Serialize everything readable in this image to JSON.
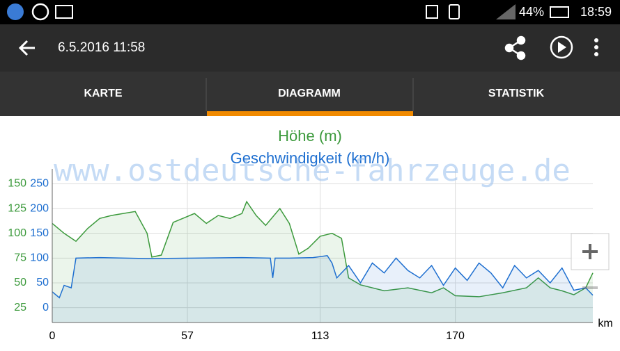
{
  "status_bar": {
    "battery": "44%",
    "time": "18:59"
  },
  "app_bar": {
    "title": "6.5.2016 11:58"
  },
  "tabs": [
    "KARTE",
    "DIAGRAMM",
    "STATISTIK"
  ],
  "chart_data": {
    "type": "line",
    "title": "Höhe (m)",
    "subtitle": "Geschwindigkeit (km/h)",
    "watermark": "www.ostdeutsche-fahrzeuge.de",
    "x_label": "km",
    "xlim": [
      0,
      228
    ],
    "xticks": [
      0,
      57,
      113,
      170
    ],
    "ylim": [
      10,
      165
    ],
    "yticks": [
      25,
      50,
      75,
      100,
      125,
      150
    ],
    "y2lim": [
      -30,
      280
    ],
    "y2ticks": [
      0,
      50,
      100,
      150,
      200,
      250
    ],
    "grid": true,
    "series": [
      {
        "name": "Höhe (m)",
        "color": "#3c9a3c",
        "axis": "y",
        "x": [
          0,
          5,
          10,
          15,
          20,
          25,
          30,
          35,
          40,
          42,
          46,
          51,
          55,
          60,
          65,
          70,
          75,
          80,
          82,
          86,
          90,
          96,
          100,
          104,
          108,
          113,
          118,
          122,
          125,
          130,
          140,
          150,
          160,
          165,
          170,
          180,
          190,
          200,
          205,
          210,
          215,
          220,
          225,
          228
        ],
        "values": [
          110,
          100,
          92,
          105,
          115,
          118,
          120,
          122,
          100,
          76,
          78,
          111,
          115,
          120,
          110,
          118,
          115,
          120,
          132,
          118,
          108,
          125,
          110,
          79,
          85,
          97,
          100,
          95,
          55,
          48,
          42,
          45,
          40,
          45,
          37,
          36,
          40,
          45,
          55,
          45,
          42,
          38,
          45,
          60
        ]
      },
      {
        "name": "Geschwindigkeit (km/h)",
        "color": "#1e6fd0",
        "axis": "y2",
        "x": [
          0,
          3,
          5,
          8,
          10,
          20,
          40,
          60,
          80,
          92,
          93,
          94,
          100,
          110,
          116,
          118,
          120,
          125,
          130,
          135,
          140,
          145,
          150,
          155,
          160,
          165,
          170,
          175,
          180,
          185,
          190,
          195,
          200,
          205,
          210,
          215,
          220,
          225,
          228
        ],
        "values": [
          32,
          20,
          45,
          40,
          100,
          101,
          99,
          100,
          101,
          100,
          60,
          100,
          100,
          101,
          105,
          90,
          60,
          85,
          50,
          90,
          70,
          100,
          75,
          60,
          85,
          45,
          80,
          55,
          90,
          70,
          40,
          85,
          60,
          75,
          50,
          80,
          35,
          40,
          25
        ]
      }
    ]
  }
}
